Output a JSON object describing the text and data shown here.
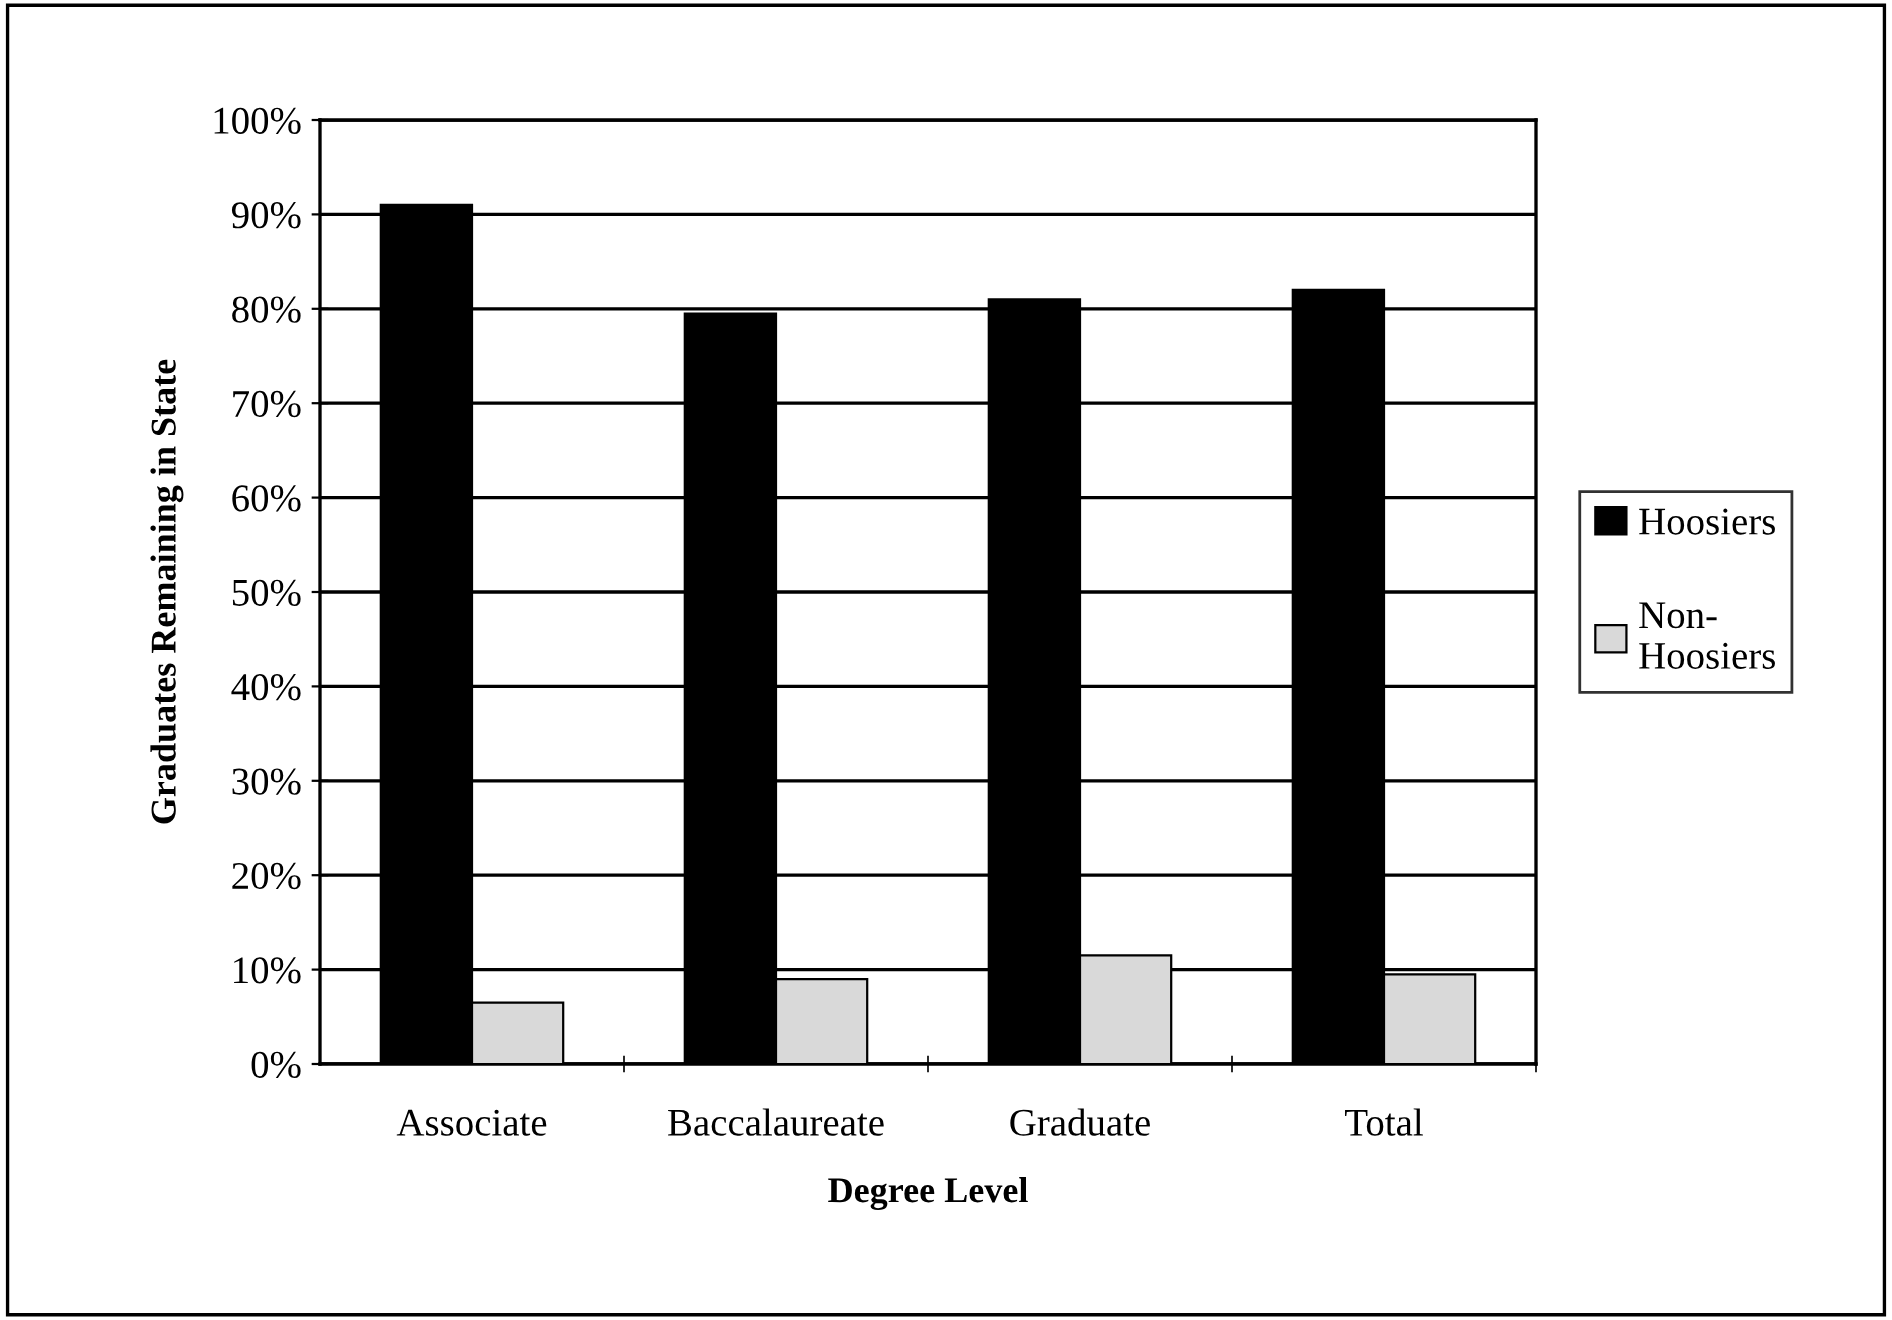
{
  "chart_data": {
    "type": "bar",
    "xlabel": "Degree Level",
    "ylabel": "Graduates Remaining in State",
    "categories": [
      "Associate",
      "Baccalaureate",
      "Graduate",
      "Total"
    ],
    "series": [
      {
        "name": "Hoosiers",
        "color": "#000000",
        "values": [
          91,
          79.5,
          81,
          82
        ]
      },
      {
        "name": "Non-\nHoosiers",
        "color": "#d9d9d9",
        "values": [
          6.5,
          9,
          11.5,
          9.5
        ]
      }
    ],
    "ylim": [
      0,
      100
    ],
    "yticks": [
      {
        "value": 0,
        "label": "0%"
      },
      {
        "value": 10,
        "label": "10%"
      },
      {
        "value": 20,
        "label": "20%"
      },
      {
        "value": 30,
        "label": "30%"
      },
      {
        "value": 40,
        "label": "40%"
      },
      {
        "value": 50,
        "label": "50%"
      },
      {
        "value": 60,
        "label": "60%"
      },
      {
        "value": 70,
        "label": "70%"
      },
      {
        "value": 80,
        "label": "80%"
      },
      {
        "value": 90,
        "label": "90%"
      },
      {
        "value": 100,
        "label": "100%"
      }
    ],
    "grid": "y",
    "legend": "right"
  }
}
